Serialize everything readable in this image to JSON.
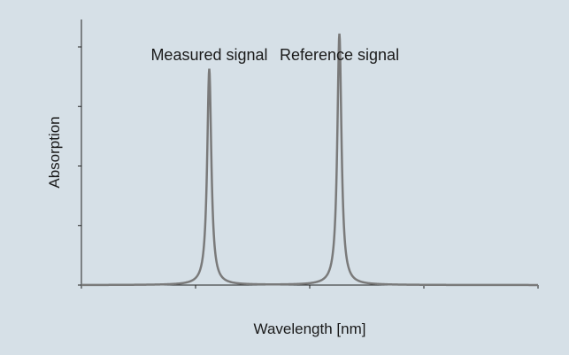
{
  "chart_data": {
    "type": "line",
    "title": "",
    "xlabel": "Wavelength [nm]",
    "ylabel": "Absorption",
    "x_tick_labels": [],
    "y_tick_labels": [],
    "xlim": [
      0,
      100
    ],
    "ylim": [
      0,
      1
    ],
    "grid": false,
    "series": [
      {
        "color": "#7a7a7a",
        "peaks": [
          {
            "center": 28,
            "height": 0.86,
            "halfwidth": 0.55
          },
          {
            "center": 56.5,
            "height": 1.0,
            "halfwidth": 0.55
          }
        ]
      }
    ],
    "annotations": [
      {
        "text": "Measured signal",
        "x": 28,
        "y": 0.88
      },
      {
        "text": "Reference signal",
        "x": 56.5,
        "y": 0.88
      }
    ]
  },
  "colors": {
    "background": "#d6e0e7",
    "axis": "#222222",
    "line": "#7a7a7a"
  }
}
